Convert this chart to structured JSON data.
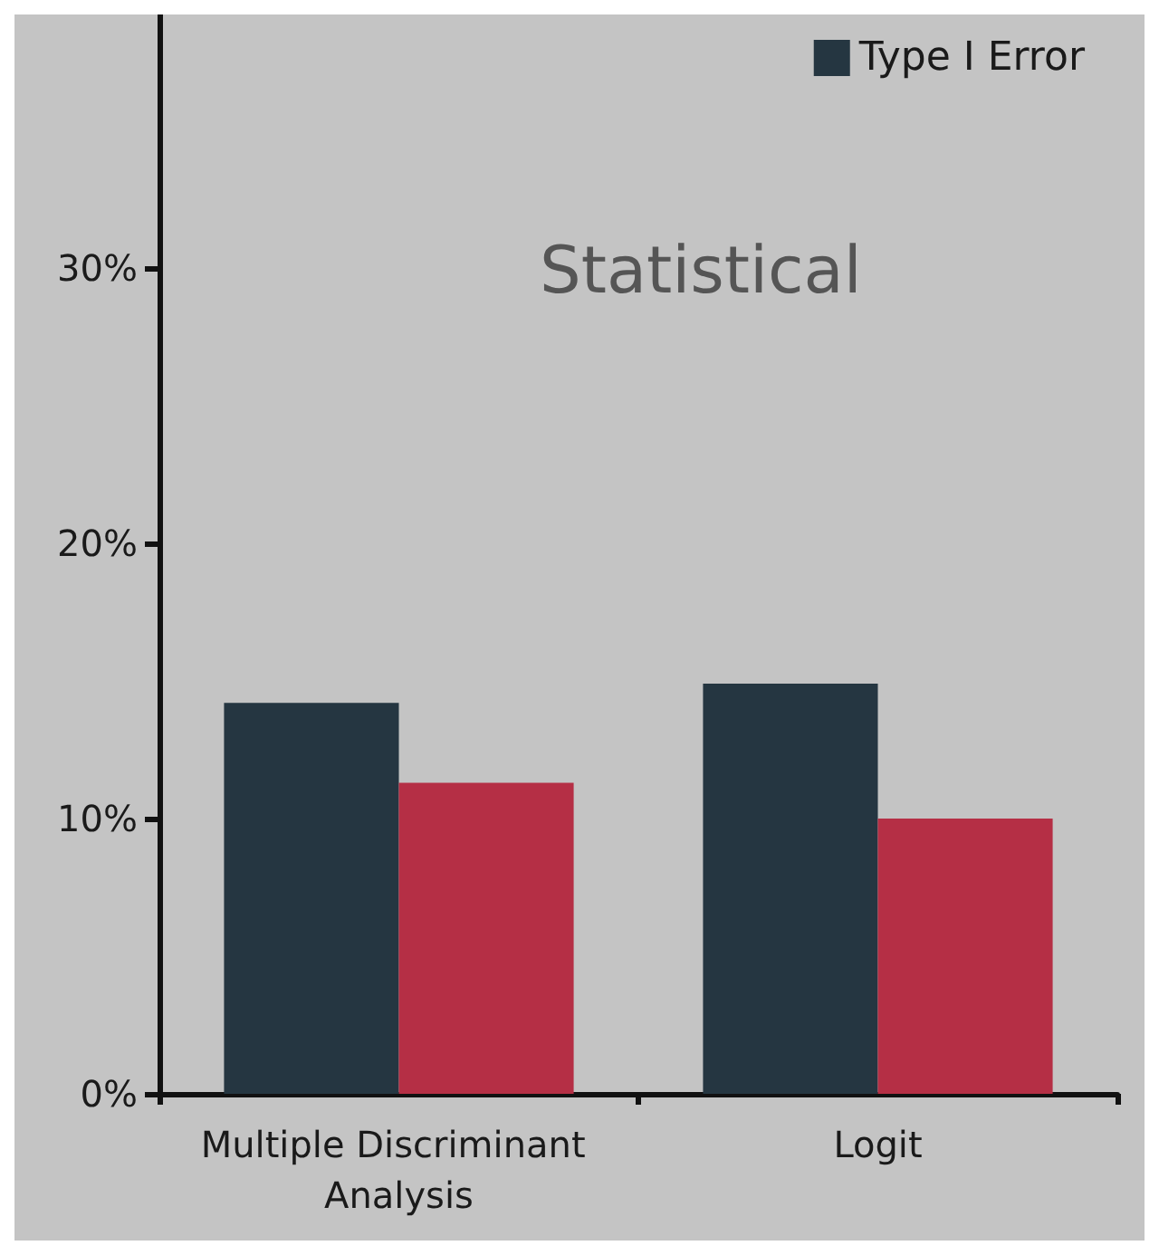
{
  "chart_data": {
    "type": "bar",
    "categories": [
      "Multiple Discriminant Analysis",
      "Logit"
    ],
    "series": [
      {
        "name": "Type I Error",
        "color": "#253641",
        "values": [
          14.2,
          14.9
        ]
      },
      {
        "color": "#b52f45",
        "values": [
          11.3,
          10
        ]
      }
    ],
    "ylim": [
      0,
      39.2
    ],
    "yticks": [
      {
        "value": 0,
        "label": "0%"
      },
      {
        "value": 10,
        "label": "10%"
      },
      {
        "value": 20,
        "label": "20%"
      },
      {
        "value": 30,
        "label": "30%"
      }
    ],
    "annotations": [
      "Statistical"
    ],
    "legend": "top right",
    "grid": false
  }
}
